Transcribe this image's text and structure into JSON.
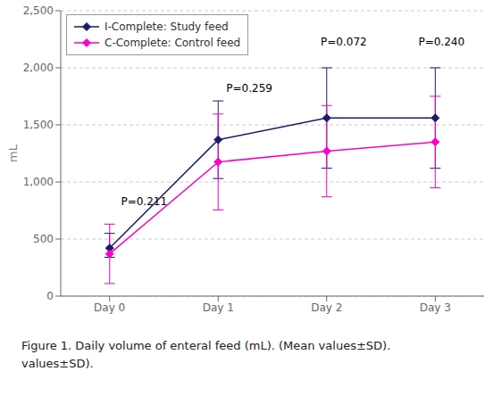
{
  "chart_data": {
    "type": "line",
    "x": [
      0,
      1,
      2,
      3
    ],
    "xlim": [
      -0.45,
      3.45
    ],
    "xticks": [
      {
        "value": 0,
        "label": "Day 0"
      },
      {
        "value": 1,
        "label": "Day 1"
      },
      {
        "value": 2,
        "label": "Day 2"
      },
      {
        "value": 3,
        "label": "Day 3"
      }
    ],
    "ylim": [
      0,
      2500
    ],
    "yticks": [
      0,
      500,
      {
        "value": 1000,
        "label": "1,000"
      },
      {
        "value": 1500,
        "label": "1,500"
      },
      {
        "value": 2000,
        "label": "2,000"
      },
      {
        "value": 2500,
        "label": "2,500"
      }
    ],
    "ylabel": "mL",
    "grid": true,
    "legend": "upper left",
    "series": [
      {
        "name": "I-Complete: Study feed",
        "color": "#1a1a6e",
        "marker": "diamond",
        "values": [
          420,
          1370,
          1560,
          1560
        ],
        "err_low": [
          80,
          340,
          440,
          440
        ],
        "err_high": [
          130,
          340,
          440,
          440
        ]
      },
      {
        "name": "C-Complete: Control feed",
        "color": "#ff00cc",
        "marker": "diamond",
        "values": [
          370,
          1175,
          1270,
          1350
        ],
        "err_low": [
          260,
          420,
          400,
          400
        ],
        "err_high": [
          260,
          420,
          400,
          400
        ]
      }
    ],
    "annotations": [
      {
        "text": "P=0.211",
        "x": 0.08,
        "y": 830
      },
      {
        "text": "P=0.259",
        "x": 1.05,
        "y": 1820
      },
      {
        "text": "P=0.072",
        "x": 1.92,
        "y": 2230
      },
      {
        "text": "P=0.240",
        "x": 2.82,
        "y": 2230
      }
    ],
    "caption": [
      "Figure 1. Daily volume of enteral feed (mL). (Mean values±SD).",
      "values±SD)."
    ]
  }
}
